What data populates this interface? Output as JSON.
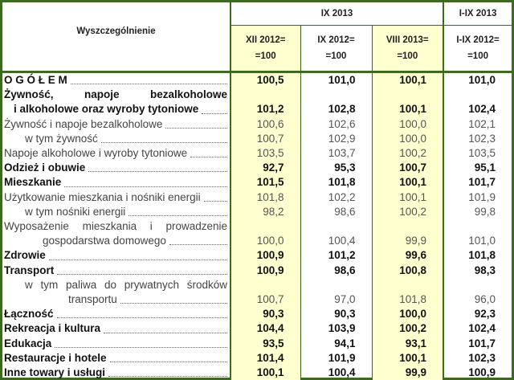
{
  "header": {
    "title": "Wyszczególnienie",
    "group1": "IX 2013",
    "group2": "I-IX 2013",
    "cols": [
      {
        "l1": "XII 2012=",
        "l2": "=100"
      },
      {
        "l1": "IX 2012=",
        "l2": "=100"
      },
      {
        "l1": "VIII 2013=",
        "l2": "=100"
      },
      {
        "l1": "I-IX 2012=",
        "l2": "=100"
      }
    ]
  },
  "rows": [
    {
      "label": "O G Ó Ł E M",
      "bold": true,
      "values": [
        "100,5",
        "101,0",
        "100,1",
        "101,0"
      ]
    },
    {
      "label": "Żywność, napoje bezalkoholowe",
      "label2": "i alkoholowe oraz wyroby tytoniowe",
      "bold": true,
      "values": [
        "101,2",
        "102,8",
        "100,1",
        "102,4"
      ]
    },
    {
      "label": "Żywność i napoje bezalkoholowe",
      "bold": false,
      "values": [
        "100,6",
        "102,6",
        "100,0",
        "102,1"
      ]
    },
    {
      "label": "w tym żywność",
      "bold": false,
      "values": [
        "100,7",
        "102,9",
        "100,0",
        "102,3"
      ]
    },
    {
      "label": "Napoje alkoholowe i wyroby tytoniowe",
      "bold": false,
      "values": [
        "103,5",
        "103,7",
        "100,2",
        "103,5"
      ]
    },
    {
      "label": "Odzież i obuwie",
      "bold": true,
      "values": [
        "92,7",
        "95,3",
        "100,7",
        "95,1"
      ]
    },
    {
      "label": "Mieszkanie",
      "bold": true,
      "values": [
        "101,5",
        "101,8",
        "100,1",
        "101,7"
      ]
    },
    {
      "label": "Użytkowanie mieszkania i nośniki energii",
      "bold": false,
      "values": [
        "101,8",
        "102,2",
        "100,1",
        "101,9"
      ]
    },
    {
      "label": "w tym nośniki energii",
      "bold": false,
      "values": [
        "98,2",
        "98,6",
        "100,2",
        "99,8"
      ]
    },
    {
      "label": "Wyposażenie mieszkania i prowadzenie",
      "label2": "gospodarstwa domowego",
      "bold": false,
      "values": [
        "100,0",
        "100,4",
        "99,9",
        "101,0"
      ]
    },
    {
      "label": "Zdrowie",
      "bold": true,
      "values": [
        "100,9",
        "101,2",
        "99,6",
        "101,8"
      ]
    },
    {
      "label": "Transport",
      "bold": true,
      "values": [
        "100,9",
        "98,6",
        "100,8",
        "98,3"
      ]
    },
    {
      "label": "w tym paliwa do prywatnych środków",
      "label2": "transportu",
      "bold": false,
      "values": [
        "100,7",
        "97,0",
        "101,8",
        "96,0"
      ]
    },
    {
      "label": "Łączność",
      "bold": true,
      "values": [
        "90,3",
        "90,3",
        "100,0",
        "92,3"
      ]
    },
    {
      "label": "Rekreacja i kultura",
      "bold": true,
      "values": [
        "104,4",
        "103,9",
        "100,2",
        "102,4"
      ]
    },
    {
      "label": "Edukacja",
      "bold": true,
      "values": [
        "93,5",
        "94,1",
        "93,1",
        "101,7"
      ]
    },
    {
      "label": "Restauracje i hotele",
      "bold": true,
      "values": [
        "101,4",
        "101,9",
        "100,1",
        "102,3"
      ]
    },
    {
      "label": "Inne towary i usługi",
      "bold": true,
      "values": [
        "100,1",
        "100,4",
        "99,9",
        "100,9"
      ]
    }
  ],
  "colors": {
    "border": "#3d6b1e",
    "highlight_column": "#ffffd0"
  }
}
